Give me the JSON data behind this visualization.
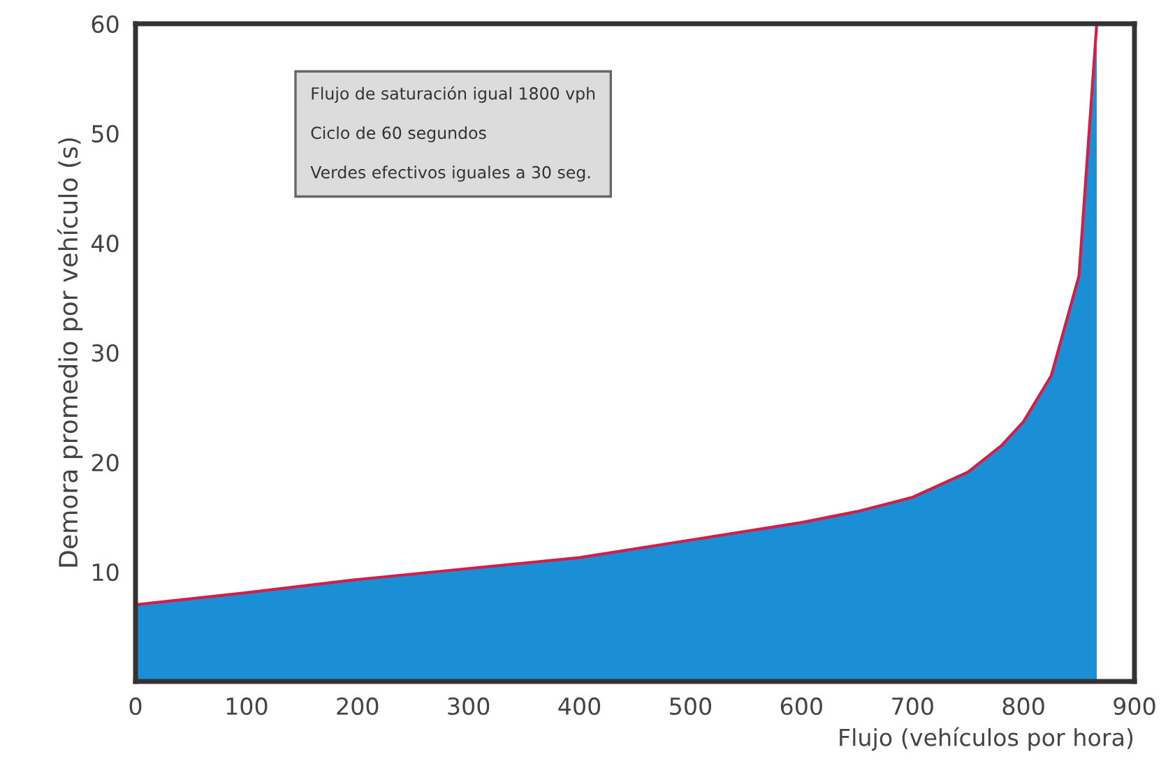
{
  "chart_data": {
    "type": "area",
    "xlabel": "Flujo (vehículos por hora)",
    "ylabel": "Demora promedio por vehículo (s)",
    "x": [
      0,
      100,
      200,
      300,
      400,
      500,
      600,
      650,
      700,
      750,
      780,
      800,
      825,
      850,
      866
    ],
    "series": [
      {
        "color": "#1a8fd6",
        "values": [
          7,
          8.1,
          9.3,
          10.3,
          11.3,
          12.9,
          14.5,
          15.5,
          16.8,
          19.1,
          21.5,
          23.7,
          27.9,
          37,
          60
        ]
      },
      {
        "type": "line",
        "color": "#d0204a",
        "values": [
          7,
          8.1,
          9.3,
          10.3,
          11.3,
          12.9,
          14.5,
          15.5,
          16.8,
          19.1,
          21.5,
          23.7,
          27.9,
          37,
          60
        ]
      }
    ],
    "xlim": [
      0,
      900
    ],
    "ylim": [
      0,
      60
    ],
    "xticks": [
      0,
      100,
      200,
      300,
      400,
      500,
      600,
      700,
      800,
      900
    ],
    "yticks": [
      10,
      20,
      30,
      40,
      50,
      60
    ],
    "annotations": [
      "Flujo de saturación igual 1800 vph",
      "Ciclo de 60 segundos",
      "Verdes efectivos iguales a 30 seg."
    ],
    "grid": false,
    "legend": false
  }
}
